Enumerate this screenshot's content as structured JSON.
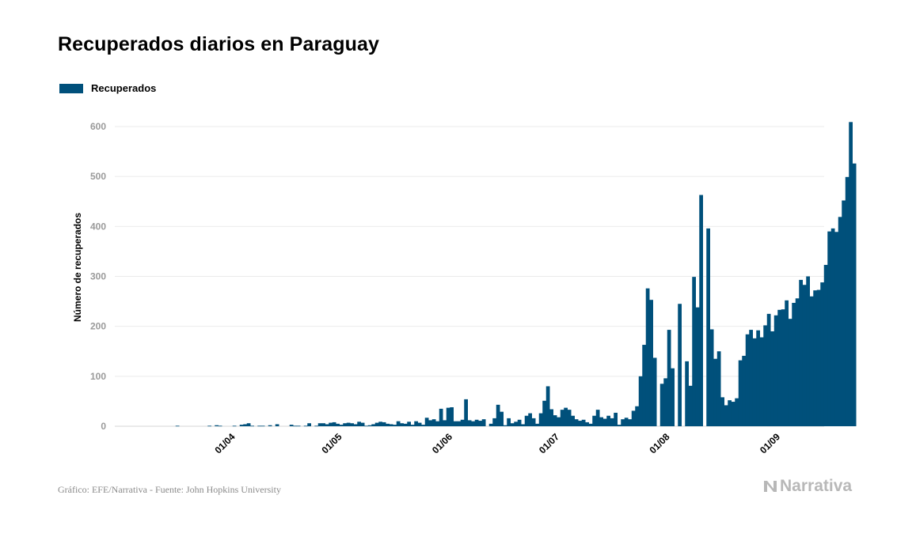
{
  "title": "Recuperados diarios en Paraguay",
  "legend": {
    "label": "Recuperados",
    "color": "#00507b"
  },
  "footer": "Gráfico: EFE/Narrativa - Fuente: John Hopkins University",
  "brand": "Narrativa",
  "chart_data": {
    "type": "bar",
    "title": "Recuperados diarios en Paraguay",
    "xlabel": "",
    "ylabel": "Número de recuperados",
    "ylim": [
      0,
      630
    ],
    "yticks": [
      0,
      100,
      200,
      300,
      400,
      500,
      600
    ],
    "grid": true,
    "legend_position": "top-left",
    "color": "#00507b",
    "x_tick_labels": [
      "01/04",
      "01/05",
      "01/06",
      "01/07",
      "01/08",
      "01/09"
    ],
    "x_tick_dates": [
      "2020-04-01",
      "2020-05-01",
      "2020-06-01",
      "2020-07-01",
      "2020-08-01",
      "2020-09-01"
    ],
    "series": [
      {
        "name": "Recuperados",
        "dates": [
          "2020-03-10",
          "2020-03-11",
          "2020-03-12",
          "2020-03-13",
          "2020-03-14",
          "2020-03-15",
          "2020-03-16",
          "2020-03-17",
          "2020-03-18",
          "2020-03-19",
          "2020-03-20",
          "2020-03-21",
          "2020-03-22",
          "2020-03-23",
          "2020-03-24",
          "2020-03-25",
          "2020-03-26",
          "2020-03-27",
          "2020-03-28",
          "2020-03-29",
          "2020-03-30",
          "2020-03-31",
          "2020-04-01",
          "2020-04-02",
          "2020-04-03",
          "2020-04-04",
          "2020-04-05",
          "2020-04-06",
          "2020-04-07",
          "2020-04-08",
          "2020-04-09",
          "2020-04-10",
          "2020-04-11",
          "2020-04-12",
          "2020-04-13",
          "2020-04-14",
          "2020-04-15",
          "2020-04-16",
          "2020-04-17",
          "2020-04-18",
          "2020-04-19",
          "2020-04-20",
          "2020-04-21",
          "2020-04-22",
          "2020-04-23",
          "2020-04-24",
          "2020-04-25",
          "2020-04-26",
          "2020-04-27",
          "2020-04-28",
          "2020-04-29",
          "2020-04-30",
          "2020-05-01",
          "2020-05-02",
          "2020-05-03",
          "2020-05-04",
          "2020-05-05",
          "2020-05-06",
          "2020-05-07",
          "2020-05-08",
          "2020-05-09",
          "2020-05-10",
          "2020-05-11",
          "2020-05-12",
          "2020-05-13",
          "2020-05-14",
          "2020-05-15",
          "2020-05-16",
          "2020-05-17",
          "2020-05-18",
          "2020-05-19",
          "2020-05-20",
          "2020-05-21",
          "2020-05-22",
          "2020-05-23",
          "2020-05-24",
          "2020-05-25",
          "2020-05-26",
          "2020-05-27",
          "2020-05-28",
          "2020-05-29",
          "2020-05-30",
          "2020-05-31",
          "2020-06-01",
          "2020-06-02",
          "2020-06-03",
          "2020-06-04",
          "2020-06-05",
          "2020-06-06",
          "2020-06-07",
          "2020-06-08",
          "2020-06-09",
          "2020-06-10",
          "2020-06-11",
          "2020-06-12",
          "2020-06-13",
          "2020-06-14",
          "2020-06-15",
          "2020-06-16",
          "2020-06-17",
          "2020-06-18",
          "2020-06-19",
          "2020-06-20",
          "2020-06-21",
          "2020-06-22",
          "2020-06-23",
          "2020-06-24",
          "2020-06-25",
          "2020-06-26",
          "2020-06-27",
          "2020-06-28",
          "2020-06-29",
          "2020-06-30",
          "2020-07-01",
          "2020-07-02",
          "2020-07-03",
          "2020-07-04",
          "2020-07-05",
          "2020-07-06",
          "2020-07-07",
          "2020-07-08",
          "2020-07-09",
          "2020-07-10",
          "2020-07-11",
          "2020-07-12",
          "2020-07-13",
          "2020-07-14",
          "2020-07-15",
          "2020-07-16",
          "2020-07-17",
          "2020-07-18",
          "2020-07-19",
          "2020-07-20",
          "2020-07-21",
          "2020-07-22",
          "2020-07-23",
          "2020-07-24",
          "2020-07-25",
          "2020-07-26",
          "2020-07-27",
          "2020-07-28",
          "2020-07-29",
          "2020-07-30",
          "2020-07-31",
          "2020-08-01",
          "2020-08-02",
          "2020-08-03",
          "2020-08-04",
          "2020-08-05",
          "2020-08-06",
          "2020-08-07",
          "2020-08-08",
          "2020-08-09",
          "2020-08-10",
          "2020-08-11",
          "2020-08-12",
          "2020-08-13",
          "2020-08-14",
          "2020-08-15",
          "2020-08-16",
          "2020-08-17",
          "2020-08-18",
          "2020-08-19",
          "2020-08-20",
          "2020-08-21",
          "2020-08-22",
          "2020-08-23",
          "2020-08-24",
          "2020-08-25",
          "2020-08-26",
          "2020-08-27",
          "2020-08-28",
          "2020-08-29",
          "2020-08-30",
          "2020-08-31",
          "2020-09-01",
          "2020-09-02",
          "2020-09-03",
          "2020-09-04",
          "2020-09-05",
          "2020-09-06",
          "2020-09-07",
          "2020-09-08",
          "2020-09-09",
          "2020-09-10",
          "2020-09-11",
          "2020-09-12",
          "2020-09-13",
          "2020-09-14",
          "2020-09-15"
        ],
        "values": [
          0,
          0,
          0,
          0,
          0,
          0,
          0,
          0,
          0,
          1,
          0,
          0,
          0,
          0,
          0,
          0,
          0,
          0,
          1,
          0,
          2,
          1,
          0,
          0,
          0,
          1,
          0,
          3,
          4,
          6,
          1,
          0,
          1,
          1,
          0,
          2,
          0,
          4,
          0,
          0,
          0,
          3,
          1,
          1,
          0,
          1,
          6,
          0,
          1,
          6,
          6,
          4,
          7,
          8,
          5,
          3,
          6,
          7,
          6,
          4,
          9,
          7,
          1,
          2,
          4,
          7,
          9,
          8,
          5,
          4,
          3,
          10,
          6,
          5,
          9,
          3,
          10,
          7,
          3,
          17,
          12,
          14,
          10,
          35,
          12,
          37,
          38,
          10,
          10,
          13,
          54,
          12,
          10,
          13,
          11,
          14,
          0,
          5,
          16,
          43,
          29,
          2,
          16,
          6,
          9,
          13,
          4,
          21,
          26,
          16,
          5,
          26,
          51,
          80,
          34,
          22,
          18,
          33,
          37,
          33,
          21,
          14,
          11,
          13,
          8,
          5,
          21,
          33,
          18,
          15,
          21,
          16,
          27,
          3,
          14,
          17,
          14,
          31,
          40,
          100,
          163,
          276,
          253,
          137,
          0,
          85,
          96,
          193,
          116,
          0,
          245,
          0,
          130,
          81,
          299,
          238,
          463,
          0,
          396,
          194,
          135,
          150,
          58,
          42,
          52,
          49,
          56,
          132,
          141,
          184,
          193,
          176,
          192,
          178,
          202,
          225,
          190,
          222,
          233,
          234,
          252,
          215,
          247,
          256,
          293,
          283,
          300,
          260,
          272,
          273
        ]
      }
    ],
    "tail_values": [
      288,
      323,
      390,
      396,
      389,
      419,
      452,
      499,
      609,
      526
    ]
  }
}
